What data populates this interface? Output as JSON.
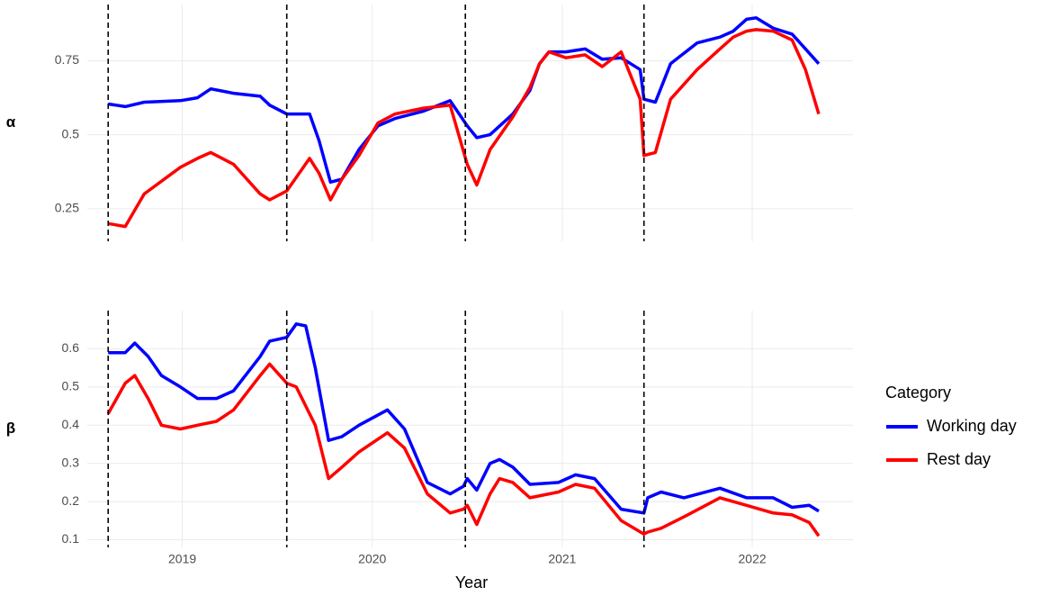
{
  "chart_data": [
    {
      "type": "line",
      "y_label": "α",
      "x": [
        2018.61,
        2018.7,
        2018.8,
        2018.99,
        2019.08,
        2019.15,
        2019.27,
        2019.41,
        2019.46,
        2019.55,
        2019.67,
        2019.72,
        2019.78,
        2019.84,
        2019.93,
        2020.03,
        2020.12,
        2020.27,
        2020.41,
        2020.5,
        2020.55,
        2020.62,
        2020.74,
        2020.83,
        2020.88,
        2020.93,
        2021.02,
        2021.12,
        2021.21,
        2021.31,
        2021.41,
        2021.43,
        2021.49,
        2021.57,
        2021.71,
        2021.83,
        2021.9,
        2021.97,
        2022.02,
        2022.11,
        2022.21,
        2022.28,
        2022.35
      ],
      "series": [
        {
          "color": "#0000ff",
          "values": [
            0.604,
            0.595,
            0.61,
            0.615,
            0.625,
            0.655,
            0.64,
            0.63,
            0.6,
            0.57,
            0.57,
            0.48,
            0.34,
            0.35,
            0.45,
            0.53,
            0.555,
            0.58,
            0.615,
            0.53,
            0.49,
            0.5,
            0.57,
            0.65,
            0.74,
            0.78,
            0.78,
            0.79,
            0.755,
            0.76,
            0.72,
            0.62,
            0.61,
            0.74,
            0.81,
            0.83,
            0.85,
            0.89,
            0.895,
            0.86,
            0.84,
            0.79,
            0.74
          ]
        },
        {
          "color": "#ff0000",
          "values": [
            0.2,
            0.19,
            0.3,
            0.39,
            0.42,
            0.44,
            0.4,
            0.3,
            0.28,
            0.31,
            0.42,
            0.37,
            0.28,
            0.35,
            0.43,
            0.54,
            0.57,
            0.59,
            0.6,
            0.4,
            0.33,
            0.45,
            0.56,
            0.66,
            0.74,
            0.78,
            0.76,
            0.77,
            0.73,
            0.78,
            0.62,
            0.43,
            0.44,
            0.62,
            0.72,
            0.79,
            0.83,
            0.85,
            0.855,
            0.85,
            0.82,
            0.72,
            0.57
          ]
        }
      ],
      "xlim": [
        2018.5,
        2022.53
      ],
      "xticks": [
        2019,
        2020,
        2021,
        2022
      ],
      "ylim": [
        0.14,
        0.94
      ],
      "yticks": [
        0.25,
        0.5,
        0.75
      ],
      "vlines": [
        2018.61,
        2019.55,
        2020.49,
        2021.43
      ],
      "grid": true
    },
    {
      "type": "line",
      "y_label": "β",
      "x_label": "Year",
      "legend_title": "Category",
      "legend": "right",
      "x": [
        2018.61,
        2018.7,
        2018.75,
        2018.82,
        2018.89,
        2018.99,
        2019.08,
        2019.18,
        2019.27,
        2019.41,
        2019.46,
        2019.55,
        2019.6,
        2019.65,
        2019.7,
        2019.77,
        2019.84,
        2019.93,
        2020.08,
        2020.17,
        2020.29,
        2020.41,
        2020.48,
        2020.5,
        2020.55,
        2020.62,
        2020.67,
        2020.74,
        2020.83,
        2020.98,
        2021.07,
        2021.17,
        2021.31,
        2021.43,
        2021.45,
        2021.52,
        2021.64,
        2021.83,
        2021.97,
        2022.11,
        2022.21,
        2022.3,
        2022.35
      ],
      "series": [
        {
          "name": "Working day",
          "color": "#0000ff",
          "values": [
            0.59,
            0.59,
            0.615,
            0.58,
            0.53,
            0.5,
            0.47,
            0.47,
            0.49,
            0.58,
            0.62,
            0.63,
            0.665,
            0.66,
            0.55,
            0.36,
            0.37,
            0.4,
            0.44,
            0.39,
            0.25,
            0.22,
            0.24,
            0.26,
            0.23,
            0.3,
            0.31,
            0.29,
            0.245,
            0.25,
            0.27,
            0.26,
            0.18,
            0.17,
            0.21,
            0.225,
            0.21,
            0.235,
            0.21,
            0.21,
            0.185,
            0.19,
            0.175
          ]
        },
        {
          "name": "Rest day",
          "color": "#ff0000",
          "values": [
            0.43,
            0.51,
            0.53,
            0.47,
            0.4,
            0.39,
            0.4,
            0.41,
            0.44,
            0.53,
            0.56,
            0.51,
            0.5,
            0.45,
            0.4,
            0.26,
            0.29,
            0.33,
            0.38,
            0.34,
            0.22,
            0.17,
            0.18,
            0.19,
            0.14,
            0.22,
            0.26,
            0.25,
            0.21,
            0.225,
            0.245,
            0.235,
            0.15,
            0.115,
            0.12,
            0.13,
            0.16,
            0.21,
            0.19,
            0.17,
            0.165,
            0.145,
            0.11
          ]
        }
      ],
      "xlim": [
        2018.5,
        2022.53
      ],
      "xticks": [
        2019,
        2020,
        2021,
        2022
      ],
      "ylim": [
        0.08,
        0.7
      ],
      "yticks": [
        0.1,
        0.2,
        0.3,
        0.4,
        0.5,
        0.6
      ],
      "vlines": [
        2018.61,
        2019.55,
        2020.49,
        2021.43
      ],
      "grid": true
    }
  ]
}
